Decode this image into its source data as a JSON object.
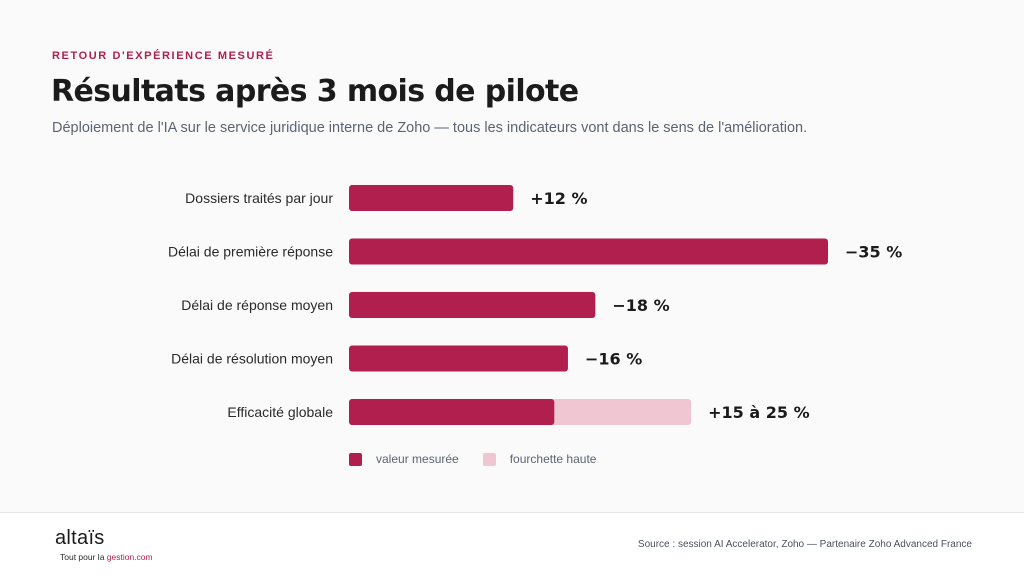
{
  "header": {
    "eyebrow": "RETOUR D'EXPÉRIENCE MESURÉ",
    "title": "Résultats après 3 mois de pilote",
    "subtitle": "Déploiement de l'IA sur le service juridique interne de Zoho — tous les indicateurs vont dans le sens de l'amélioration."
  },
  "colors": {
    "accent": "#b11f4e",
    "range": "#f0c6d3"
  },
  "chart_data": {
    "type": "bar",
    "orientation": "horizontal",
    "categories": [
      "Dossiers traités par jour",
      "Délai de première réponse",
      "Délai de réponse moyen",
      "Délai de résolution moyen",
      "Efficacité globale"
    ],
    "series": [
      {
        "name": "valeur mesurée",
        "values": [
          12,
          35,
          18,
          16,
          15
        ]
      },
      {
        "name": "fourchette haute",
        "values": [
          null,
          null,
          null,
          null,
          25
        ]
      }
    ],
    "value_labels": [
      "+12 %",
      "−35 %",
      "−18 %",
      "−16 %",
      "+15 à 25 %"
    ],
    "xlim": [
      0,
      35
    ],
    "grid": false,
    "legend_position": "bottom-left"
  },
  "legend": [
    {
      "label": "valeur mesurée",
      "color": "#b11f4e"
    },
    {
      "label": "fourchette haute",
      "color": "#f0c6d3"
    }
  ],
  "footer": {
    "logo": "altaïs",
    "tagline_prefix": "Tout pour la ",
    "tagline_accent": "gestion.com",
    "source": "Source : session AI Accelerator, Zoho — Partenaire Zoho Advanced France"
  }
}
